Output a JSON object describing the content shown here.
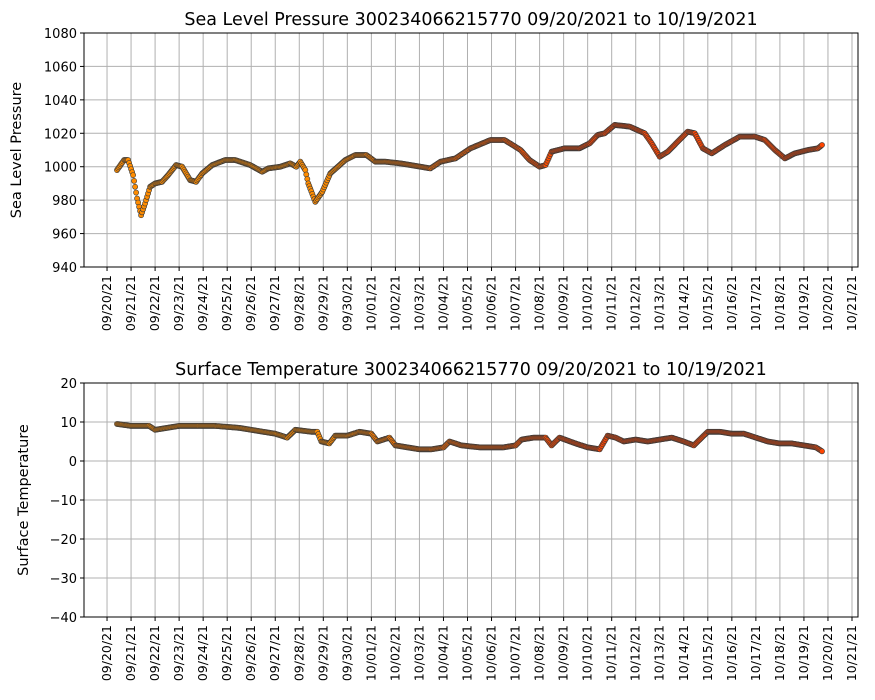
{
  "chart_data": [
    {
      "type": "scatter",
      "title": "Sea Level Pressure 300234066215770  09/20/2021 to 10/19/2021",
      "xlabel": "",
      "ylabel": "Sea Level Pressure",
      "ylim": [
        940,
        1080
      ],
      "yticks": [
        940,
        960,
        980,
        1000,
        1020,
        1040,
        1060,
        1080
      ],
      "xlim": [
        "2021-09-19 01:00",
        "2021-10-21 06:00"
      ],
      "xticks": [
        "09/20/21",
        "09/21/21",
        "09/22/21",
        "09/23/21",
        "09/24/21",
        "09/25/21",
        "09/26/21",
        "09/27/21",
        "09/28/21",
        "09/29/21",
        "09/30/21",
        "10/01/21",
        "10/02/21",
        "10/03/21",
        "10/04/21",
        "10/05/21",
        "10/06/21",
        "10/07/21",
        "10/08/21",
        "10/09/21",
        "10/10/21",
        "10/11/21",
        "10/12/21",
        "10/13/21",
        "10/14/21",
        "10/15/21",
        "10/16/21",
        "10/17/21",
        "10/18/21",
        "10/19/21",
        "10/20/21",
        "10/21/21"
      ],
      "grid": true,
      "colors": [
        "#ff8c00",
        "#ff4500"
      ],
      "points": [
        [
          "2021-09-20 10:00",
          998
        ],
        [
          "2021-09-20 17:00",
          1004
        ],
        [
          "2021-09-20 21:00",
          1004
        ],
        [
          "2021-09-21 02:00",
          995
        ],
        [
          "2021-09-21 06:00",
          981
        ],
        [
          "2021-09-21 10:00",
          971
        ],
        [
          "2021-09-21 14:00",
          978
        ],
        [
          "2021-09-21 19:00",
          988
        ],
        [
          "2021-09-22 00:00",
          990
        ],
        [
          "2021-09-22 07:00",
          991
        ],
        [
          "2021-09-22 13:00",
          995
        ],
        [
          "2021-09-22 21:00",
          1001
        ],
        [
          "2021-09-23 03:00",
          1000
        ],
        [
          "2021-09-23 11:00",
          992
        ],
        [
          "2021-09-23 17:00",
          991
        ],
        [
          "2021-09-23 23:00",
          996
        ],
        [
          "2021-09-24 09:00",
          1001
        ],
        [
          "2021-09-24 22:00",
          1004
        ],
        [
          "2021-09-25 08:00",
          1004
        ],
        [
          "2021-09-25 23:00",
          1001
        ],
        [
          "2021-09-26 11:00",
          997
        ],
        [
          "2021-09-26 17:00",
          999
        ],
        [
          "2021-09-27 05:00",
          1000
        ],
        [
          "2021-09-27 15:00",
          1002
        ],
        [
          "2021-09-27 21:00",
          1000
        ],
        [
          "2021-09-28 01:00",
          1003
        ],
        [
          "2021-09-28 06:00",
          998
        ],
        [
          "2021-09-28 09:00",
          990
        ],
        [
          "2021-09-28 16:00",
          979
        ],
        [
          "2021-09-28 23:00",
          985
        ],
        [
          "2021-09-29 07:00",
          996
        ],
        [
          "2021-09-29 22:00",
          1004
        ],
        [
          "2021-09-30 08:00",
          1007
        ],
        [
          "2021-09-30 19:00",
          1007
        ],
        [
          "2021-10-01 04:00",
          1003
        ],
        [
          "2021-10-01 14:00",
          1003
        ],
        [
          "2021-10-02 05:00",
          1002
        ],
        [
          "2021-10-03 01:00",
          1000
        ],
        [
          "2021-10-03 11:00",
          999
        ],
        [
          "2021-10-03 21:00",
          1003
        ],
        [
          "2021-10-04 12:00",
          1005
        ],
        [
          "2021-10-05 03:00",
          1011
        ],
        [
          "2021-10-05 23:00",
          1016
        ],
        [
          "2021-10-06 13:00",
          1016
        ],
        [
          "2021-10-07 05:00",
          1010
        ],
        [
          "2021-10-07 14:00",
          1004
        ],
        [
          "2021-10-08 00:00",
          1000
        ],
        [
          "2021-10-08 06:00",
          1001
        ],
        [
          "2021-10-08 12:00",
          1009
        ],
        [
          "2021-10-09 01:00",
          1011
        ],
        [
          "2021-10-09 16:00",
          1011
        ],
        [
          "2021-10-10 02:00",
          1014
        ],
        [
          "2021-10-10 10:00",
          1019
        ],
        [
          "2021-10-10 17:00",
          1020
        ],
        [
          "2021-10-11 03:00",
          1025
        ],
        [
          "2021-10-11 18:00",
          1024
        ],
        [
          "2021-10-12 09:00",
          1020
        ],
        [
          "2021-10-12 16:00",
          1014
        ],
        [
          "2021-10-13 00:00",
          1006
        ],
        [
          "2021-10-13 08:00",
          1009
        ],
        [
          "2021-10-13 18:00",
          1015
        ],
        [
          "2021-10-14 04:00",
          1021
        ],
        [
          "2021-10-14 11:00",
          1020
        ],
        [
          "2021-10-14 19:00",
          1011
        ],
        [
          "2021-10-15 04:00",
          1008
        ],
        [
          "2021-10-15 17:00",
          1013
        ],
        [
          "2021-10-16 08:00",
          1018
        ],
        [
          "2021-10-16 23:00",
          1018
        ],
        [
          "2021-10-17 09:00",
          1016
        ],
        [
          "2021-10-17 19:00",
          1010
        ],
        [
          "2021-10-18 05:00",
          1005
        ],
        [
          "2021-10-18 15:00",
          1008
        ],
        [
          "2021-10-19 04:00",
          1010
        ],
        [
          "2021-10-19 14:00",
          1011
        ],
        [
          "2021-10-19 18:00",
          1013
        ]
      ]
    },
    {
      "type": "scatter",
      "title": "Surface Temperature 300234066215770  09/20/2021 to 10/19/2021",
      "xlabel": "",
      "ylabel": "Surface Temperature",
      "ylim": [
        -40,
        20
      ],
      "yticks": [
        -40,
        -30,
        -20,
        -10,
        0,
        10,
        20
      ],
      "xlim": [
        "2021-09-19 01:00",
        "2021-10-21 06:00"
      ],
      "xticks": [
        "09/20/21",
        "09/21/21",
        "09/22/21",
        "09/23/21",
        "09/24/21",
        "09/25/21",
        "09/26/21",
        "09/27/21",
        "09/28/21",
        "09/29/21",
        "09/30/21",
        "10/01/21",
        "10/02/21",
        "10/03/21",
        "10/04/21",
        "10/05/21",
        "10/06/21",
        "10/07/21",
        "10/08/21",
        "10/09/21",
        "10/10/21",
        "10/11/21",
        "10/12/21",
        "10/13/21",
        "10/14/21",
        "10/15/21",
        "10/16/21",
        "10/17/21",
        "10/18/21",
        "10/19/21",
        "10/20/21",
        "10/21/21"
      ],
      "grid": true,
      "colors": [
        "#ff8c00",
        "#ff4500"
      ],
      "points": [
        [
          "2021-09-20 10:00",
          9.5
        ],
        [
          "2021-09-21 00:00",
          9
        ],
        [
          "2021-09-21 18:00",
          9
        ],
        [
          "2021-09-22 00:00",
          8
        ],
        [
          "2021-09-22 12:00",
          8.5
        ],
        [
          "2021-09-23 00:00",
          9
        ],
        [
          "2021-09-24 12:00",
          9
        ],
        [
          "2021-09-25 12:00",
          8.5
        ],
        [
          "2021-09-26 00:00",
          8
        ],
        [
          "2021-09-26 12:00",
          7.5
        ],
        [
          "2021-09-27 00:00",
          7
        ],
        [
          "2021-09-27 12:00",
          6
        ],
        [
          "2021-09-27 20:00",
          8
        ],
        [
          "2021-09-28 12:00",
          7.5
        ],
        [
          "2021-09-28 18:00",
          7.5
        ],
        [
          "2021-09-28 22:00",
          5
        ],
        [
          "2021-09-29 06:00",
          4.5
        ],
        [
          "2021-09-29 12:00",
          6.5
        ],
        [
          "2021-09-30 00:00",
          6.5
        ],
        [
          "2021-09-30 12:00",
          7.5
        ],
        [
          "2021-10-01 00:00",
          7
        ],
        [
          "2021-10-01 06:00",
          5
        ],
        [
          "2021-10-01 18:00",
          6
        ],
        [
          "2021-10-02 00:00",
          4
        ],
        [
          "2021-10-02 12:00",
          3.5
        ],
        [
          "2021-10-03 00:00",
          3
        ],
        [
          "2021-10-03 12:00",
          3
        ],
        [
          "2021-10-04 00:00",
          3.5
        ],
        [
          "2021-10-04 06:00",
          5
        ],
        [
          "2021-10-04 18:00",
          4
        ],
        [
          "2021-10-05 12:00",
          3.5
        ],
        [
          "2021-10-06 12:00",
          3.5
        ],
        [
          "2021-10-07 00:00",
          4
        ],
        [
          "2021-10-07 06:00",
          5.5
        ],
        [
          "2021-10-07 18:00",
          6
        ],
        [
          "2021-10-08 06:00",
          6
        ],
        [
          "2021-10-08 12:00",
          4
        ],
        [
          "2021-10-08 20:00",
          6
        ],
        [
          "2021-10-09 12:00",
          4.5
        ],
        [
          "2021-10-10 00:00",
          3.5
        ],
        [
          "2021-10-10 12:00",
          3
        ],
        [
          "2021-10-10 20:00",
          6.5
        ],
        [
          "2021-10-11 04:00",
          6
        ],
        [
          "2021-10-11 12:00",
          5
        ],
        [
          "2021-10-12 00:00",
          5.5
        ],
        [
          "2021-10-12 12:00",
          5
        ],
        [
          "2021-10-13 00:00",
          5.5
        ],
        [
          "2021-10-13 12:00",
          6
        ],
        [
          "2021-10-14 00:00",
          5
        ],
        [
          "2021-10-14 10:00",
          4
        ],
        [
          "2021-10-14 18:00",
          6
        ],
        [
          "2021-10-15 00:00",
          7.5
        ],
        [
          "2021-10-15 12:00",
          7.5
        ],
        [
          "2021-10-16 00:00",
          7
        ],
        [
          "2021-10-16 12:00",
          7
        ],
        [
          "2021-10-17 00:00",
          6
        ],
        [
          "2021-10-17 12:00",
          5
        ],
        [
          "2021-10-18 00:00",
          4.5
        ],
        [
          "2021-10-18 12:00",
          4.5
        ],
        [
          "2021-10-19 00:00",
          4
        ],
        [
          "2021-10-19 12:00",
          3.5
        ],
        [
          "2021-10-19 18:00",
          2.5
        ]
      ]
    }
  ]
}
